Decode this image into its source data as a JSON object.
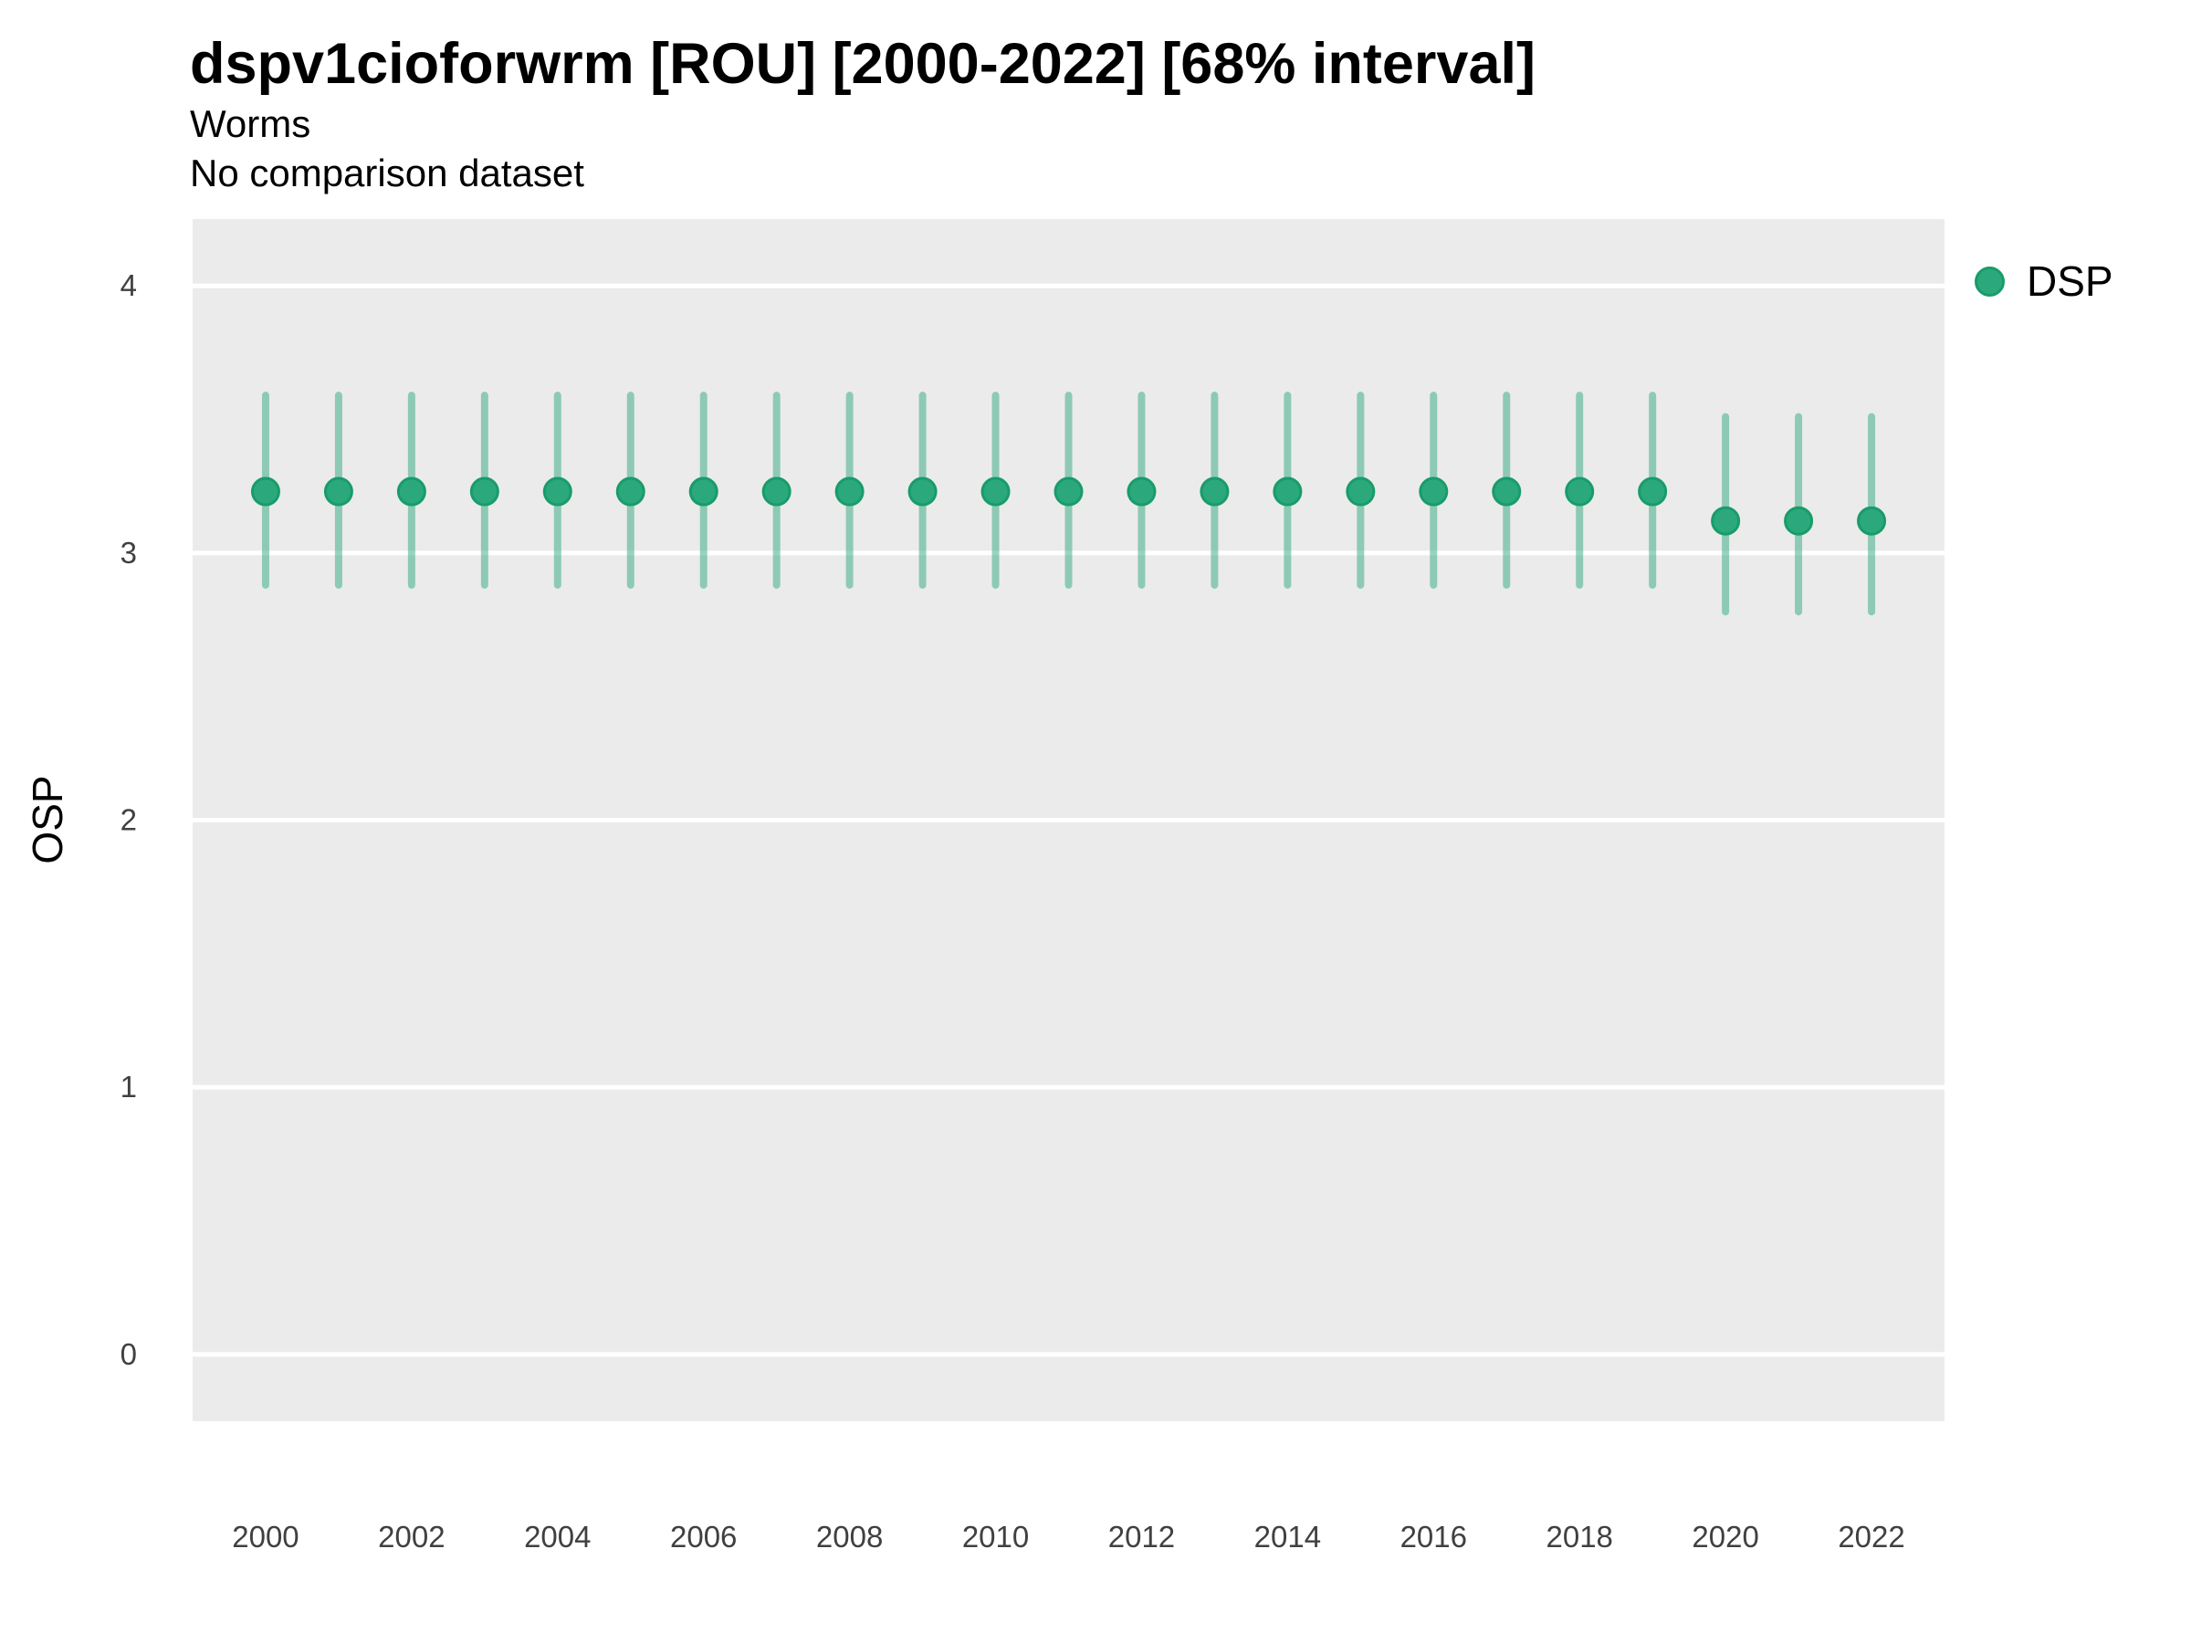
{
  "header": {
    "interval_badge": "68% interval",
    "country_code": "ROU",
    "year_range": "2000-2022"
  },
  "chart_data": {
    "type": "scatter",
    "title": "dspv1cioforwrm [ROU] [2000-2022] [68% interval]",
    "subtitle": "Worms",
    "note": "No comparison dataset",
    "xlabel": "",
    "ylabel": "OSP",
    "xlim": [
      1999,
      2023
    ],
    "ylim": [
      -0.25,
      4.25
    ],
    "x_ticks": [
      2000,
      2002,
      2004,
      2006,
      2008,
      2010,
      2012,
      2014,
      2016,
      2018,
      2020,
      2022
    ],
    "y_ticks": [
      0,
      1,
      2,
      3,
      4
    ],
    "grid": "major-horizontal-white-on-grey-panel",
    "legend_position": "right-top",
    "x": [
      2000,
      2001,
      2002,
      2003,
      2004,
      2005,
      2006,
      2007,
      2008,
      2009,
      2010,
      2011,
      2012,
      2013,
      2014,
      2015,
      2016,
      2017,
      2018,
      2019,
      2020,
      2021,
      2022
    ],
    "series": [
      {
        "name": "DSP",
        "values": [
          3.23,
          3.23,
          3.23,
          3.23,
          3.23,
          3.23,
          3.23,
          3.23,
          3.23,
          3.23,
          3.23,
          3.23,
          3.23,
          3.23,
          3.23,
          3.23,
          3.23,
          3.23,
          3.23,
          3.23,
          3.12,
          3.12,
          3.12
        ],
        "lower_68": [
          2.88,
          2.88,
          2.88,
          2.88,
          2.88,
          2.88,
          2.88,
          2.88,
          2.88,
          2.88,
          2.88,
          2.88,
          2.88,
          2.88,
          2.88,
          2.88,
          2.88,
          2.88,
          2.88,
          2.88,
          2.78,
          2.78,
          2.78
        ],
        "upper_68": [
          3.59,
          3.59,
          3.59,
          3.59,
          3.59,
          3.59,
          3.59,
          3.59,
          3.59,
          3.59,
          3.59,
          3.59,
          3.59,
          3.59,
          3.59,
          3.59,
          3.59,
          3.59,
          3.59,
          3.59,
          3.51,
          3.51,
          3.51
        ]
      }
    ],
    "colors": {
      "panel": "#EBEBEB",
      "grid": "#FFFFFF",
      "point_fill": "#2BA97D",
      "point_ring": "#189C6A",
      "errorbar": "#2FAA80",
      "errorbar_opacity": 0.5,
      "tick_text": "#404040"
    }
  }
}
